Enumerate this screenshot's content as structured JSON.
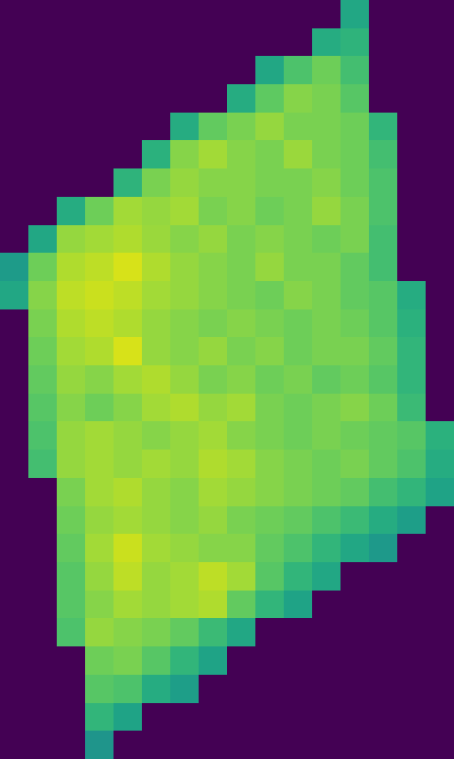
{
  "chart_data": {
    "type": "heatmap",
    "color": "viridis",
    "tick_labels": false,
    "color_range": [
      0,
      1
    ],
    "cells": [
      [
        null,
        null,
        null,
        null,
        null,
        null,
        null,
        null,
        null,
        null,
        null,
        null,
        0.6,
        null,
        null,
        null
      ],
      [
        null,
        null,
        null,
        null,
        null,
        null,
        null,
        null,
        null,
        null,
        null,
        0.62,
        0.65,
        null,
        null,
        null
      ],
      [
        null,
        null,
        null,
        null,
        null,
        null,
        null,
        null,
        null,
        0.6,
        0.72,
        0.78,
        0.7,
        null,
        null,
        null
      ],
      [
        null,
        null,
        null,
        null,
        null,
        null,
        null,
        null,
        0.62,
        0.75,
        0.82,
        0.8,
        0.74,
        null,
        null,
        null
      ],
      [
        null,
        null,
        null,
        null,
        null,
        null,
        0.62,
        0.76,
        0.8,
        0.84,
        0.8,
        0.8,
        0.78,
        0.66,
        null,
        null
      ],
      [
        null,
        null,
        null,
        null,
        null,
        0.64,
        0.82,
        0.86,
        0.82,
        0.8,
        0.85,
        0.8,
        0.78,
        0.7,
        null,
        null
      ],
      [
        null,
        null,
        null,
        null,
        0.65,
        0.8,
        0.84,
        0.82,
        0.82,
        0.8,
        0.8,
        0.82,
        0.78,
        0.72,
        null,
        null
      ],
      [
        null,
        null,
        0.62,
        0.78,
        0.86,
        0.84,
        0.86,
        0.8,
        0.82,
        0.78,
        0.8,
        0.84,
        0.8,
        0.72,
        null,
        null
      ],
      [
        null,
        0.6,
        0.84,
        0.86,
        0.88,
        0.85,
        0.82,
        0.84,
        0.8,
        0.82,
        0.8,
        0.78,
        0.8,
        0.7,
        null,
        null
      ],
      [
        0.55,
        0.78,
        0.88,
        0.9,
        0.94,
        0.88,
        0.84,
        0.82,
        0.8,
        0.84,
        0.8,
        0.8,
        0.76,
        0.7,
        null,
        null
      ],
      [
        0.6,
        0.82,
        0.9,
        0.92,
        0.9,
        0.86,
        0.84,
        0.82,
        0.8,
        0.78,
        0.82,
        0.8,
        0.76,
        0.74,
        0.62,
        null
      ],
      [
        null,
        0.8,
        0.88,
        0.9,
        0.88,
        0.84,
        0.82,
        0.8,
        0.82,
        0.8,
        0.78,
        0.8,
        0.78,
        0.74,
        0.64,
        null
      ],
      [
        null,
        0.78,
        0.86,
        0.88,
        0.94,
        0.84,
        0.82,
        0.84,
        0.8,
        0.82,
        0.78,
        0.8,
        0.8,
        0.76,
        0.66,
        null
      ],
      [
        null,
        0.76,
        0.84,
        0.82,
        0.86,
        0.88,
        0.84,
        0.8,
        0.82,
        0.78,
        0.8,
        0.76,
        0.78,
        0.74,
        0.66,
        null
      ],
      [
        null,
        0.74,
        0.82,
        0.78,
        0.82,
        0.86,
        0.88,
        0.84,
        0.86,
        0.8,
        0.78,
        0.8,
        0.82,
        0.78,
        0.68,
        null
      ],
      [
        null,
        0.72,
        0.84,
        0.86,
        0.84,
        0.82,
        0.84,
        0.86,
        0.82,
        0.8,
        0.78,
        0.8,
        0.78,
        0.76,
        0.74,
        0.64
      ],
      [
        null,
        0.7,
        0.84,
        0.86,
        0.84,
        0.86,
        0.84,
        0.88,
        0.86,
        0.82,
        0.8,
        0.78,
        0.8,
        0.76,
        0.72,
        0.62
      ],
      [
        null,
        null,
        0.8,
        0.86,
        0.88,
        0.84,
        0.82,
        0.86,
        0.84,
        0.82,
        0.8,
        0.78,
        0.76,
        0.7,
        0.66,
        0.58
      ],
      [
        null,
        null,
        0.78,
        0.84,
        0.86,
        0.84,
        0.82,
        0.84,
        0.8,
        0.78,
        0.76,
        0.72,
        0.68,
        0.62,
        0.56,
        null
      ],
      [
        null,
        null,
        0.76,
        0.86,
        0.92,
        0.86,
        0.84,
        0.82,
        0.82,
        0.76,
        0.72,
        0.66,
        0.6,
        0.54,
        null,
        null
      ],
      [
        null,
        null,
        0.74,
        0.84,
        0.9,
        0.84,
        0.86,
        0.9,
        0.86,
        0.74,
        0.66,
        0.6,
        null,
        null,
        null,
        null
      ],
      [
        null,
        null,
        0.74,
        0.82,
        0.86,
        0.84,
        0.86,
        0.88,
        0.76,
        0.66,
        0.58,
        null,
        null,
        null,
        null,
        null
      ],
      [
        null,
        null,
        0.72,
        0.84,
        0.82,
        0.8,
        0.76,
        0.68,
        0.6,
        null,
        null,
        null,
        null,
        null,
        null,
        null
      ],
      [
        null,
        null,
        null,
        0.78,
        0.8,
        0.74,
        0.66,
        0.58,
        null,
        null,
        null,
        null,
        null,
        null,
        null,
        null
      ],
      [
        null,
        null,
        null,
        0.74,
        0.72,
        0.62,
        0.56,
        null,
        null,
        null,
        null,
        null,
        null,
        null,
        null,
        null
      ],
      [
        null,
        null,
        null,
        0.66,
        0.58,
        null,
        null,
        null,
        null,
        null,
        null,
        null,
        null,
        null,
        null,
        null
      ],
      [
        null,
        null,
        null,
        0.52,
        null,
        null,
        null,
        null,
        null,
        null,
        null,
        null,
        null,
        null,
        null,
        null
      ]
    ]
  }
}
